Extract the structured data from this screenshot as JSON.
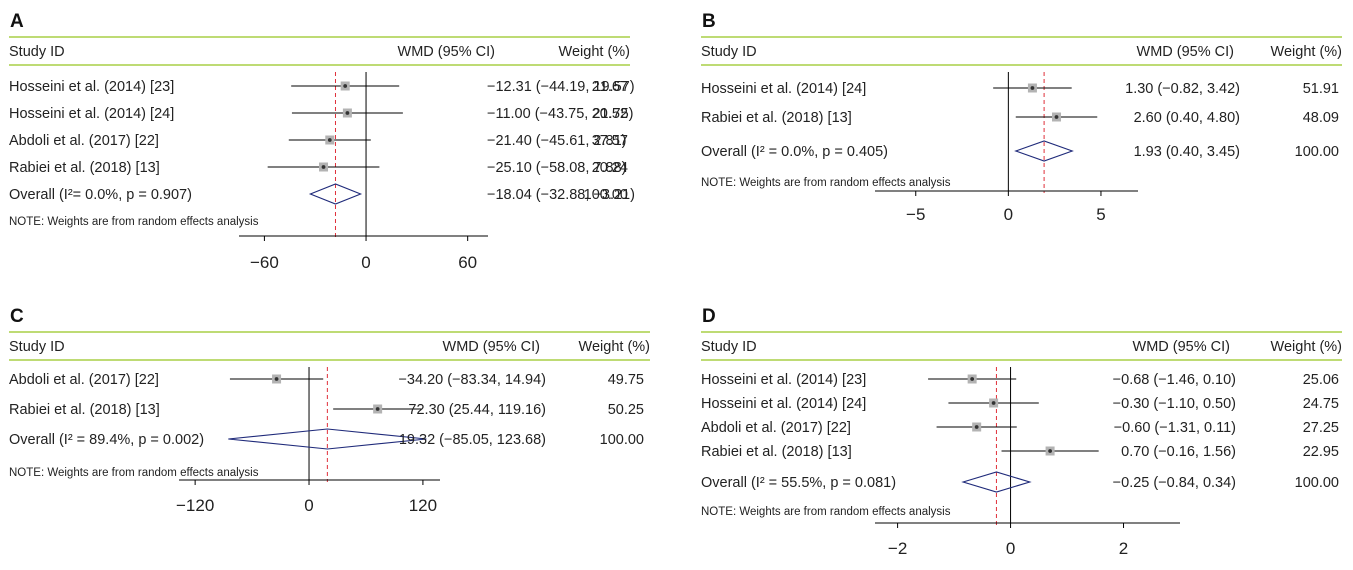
{
  "chart_data": [
    {
      "type": "forest",
      "panel": "A",
      "headers": {
        "study": "Study ID",
        "effect": "WMD (95% CI)",
        "weight": "Weight (%)"
      },
      "studies": [
        {
          "label": "Hosseini et al. (2014) [23]",
          "est": -12.31,
          "lo": -44.19,
          "hi": 19.57,
          "text": "−12.31 (−44.19, 19.57)",
          "weight": "21.67"
        },
        {
          "label": "Hosseini et al. (2014) [24]",
          "est": -11.0,
          "lo": -43.75,
          "hi": 21.75,
          "text": "−11.00 (−43.75, 21.75)",
          "weight": "20.52"
        },
        {
          "label": "Abdoli et al. (2017) [22]",
          "est": -21.4,
          "lo": -45.61,
          "hi": 2.81,
          "text": "−21.40 (−45.61, 2.81)",
          "weight": "37.57"
        },
        {
          "label": "Rabiei et al. (2018) [13]",
          "est": -25.1,
          "lo": -58.08,
          "hi": 7.88,
          "text": "−25.10 (−58.08, 7.88)",
          "weight": "20.24"
        }
      ],
      "overall": {
        "label": "Overall (I²= 0.0%, p = 0.907)",
        "est": -18.04,
        "lo": -32.88,
        "hi": -3.21,
        "text": "−18.04 (−32.88, −3.21)",
        "weight": "100.00"
      },
      "note": "NOTE: Weights are from random effects analysis",
      "ticks": [
        -60,
        0,
        60
      ],
      "tick_labels": [
        "−60",
        "0",
        "60"
      ],
      "xlim": [
        -75,
        72
      ]
    },
    {
      "type": "forest",
      "panel": "B",
      "headers": {
        "study": "Study ID",
        "effect": "WMD (95% CI)",
        "weight": "Weight (%)"
      },
      "studies": [
        {
          "label": "Hosseini et al. (2014) [24]",
          "est": 1.3,
          "lo": -0.82,
          "hi": 3.42,
          "text": "1.30 (−0.82, 3.42)",
          "weight": "51.91"
        },
        {
          "label": "Rabiei et al. (2018) [13]",
          "est": 2.6,
          "lo": 0.4,
          "hi": 4.8,
          "text": "2.60 (0.40, 4.80)",
          "weight": "48.09"
        }
      ],
      "overall": {
        "label": "Overall (I² = 0.0%, p = 0.405)",
        "est": 1.93,
        "lo": 0.4,
        "hi": 3.45,
        "text": "1.93 (0.40, 3.45)",
        "weight": "100.00"
      },
      "note": "NOTE: Weights are from random effects analysis",
      "ticks": [
        -5,
        0,
        5
      ],
      "tick_labels": [
        "−5",
        "0",
        "5"
      ],
      "xlim": [
        -7.2,
        7.0
      ]
    },
    {
      "type": "forest",
      "panel": "C",
      "headers": {
        "study": "Study ID",
        "effect": "WMD (95% CI)",
        "weight": "Weight (%)"
      },
      "studies": [
        {
          "label": "Abdoli et al. (2017) [22]",
          "est": -34.2,
          "lo": -83.34,
          "hi": 14.94,
          "text": "−34.20 (−83.34, 14.94)",
          "weight": "49.75"
        },
        {
          "label": "Rabiei et al. (2018) [13]",
          "est": 72.3,
          "lo": 25.44,
          "hi": 119.16,
          "text": "72.30 (25.44, 119.16)",
          "weight": "50.25"
        }
      ],
      "overall": {
        "label": "Overall (I² = 89.4%, p = 0.002)",
        "est": 19.32,
        "lo": -85.05,
        "hi": 123.68,
        "text": "19.32 (−85.05, 123.68)",
        "weight": "100.00"
      },
      "note": "NOTE: Weights are from random effects analysis",
      "ticks": [
        -120,
        0,
        120
      ],
      "tick_labels": [
        "−120",
        "0",
        "120"
      ],
      "xlim": [
        -137,
        138
      ]
    },
    {
      "type": "forest",
      "panel": "D",
      "headers": {
        "study": "Study ID",
        "effect": "WMD (95% CI)",
        "weight": "Weight (%)"
      },
      "studies": [
        {
          "label": "Hosseini et al. (2014) [23]",
          "est": -0.68,
          "lo": -1.46,
          "hi": 0.1,
          "text": "−0.68 (−1.46, 0.10)",
          "weight": "25.06"
        },
        {
          "label": "Hosseini et al. (2014) [24]",
          "est": -0.3,
          "lo": -1.1,
          "hi": 0.5,
          "text": "−0.30 (−1.10, 0.50)",
          "weight": "24.75"
        },
        {
          "label": "Abdoli et al. (2017) [22]",
          "est": -0.6,
          "lo": -1.31,
          "hi": 0.11,
          "text": "−0.60 (−1.31, 0.11)",
          "weight": "27.25"
        },
        {
          "label": "Rabiei et al. (2018) [13]",
          "est": 0.7,
          "lo": -0.16,
          "hi": 1.56,
          "text": "0.70 (−0.16, 1.56)",
          "weight": "22.95"
        }
      ],
      "overall": {
        "label": "Overall (I² = 55.5%, p = 0.081)",
        "est": -0.25,
        "lo": -0.84,
        "hi": 0.34,
        "text": "−0.25 (−0.84, 0.34)",
        "weight": "100.00"
      },
      "note": "NOTE: Weights are from random effects analysis",
      "ticks": [
        -2,
        0,
        2
      ],
      "tick_labels": [
        "−2",
        "0",
        "2"
      ],
      "xlim": [
        -2.4,
        3.0
      ]
    }
  ]
}
